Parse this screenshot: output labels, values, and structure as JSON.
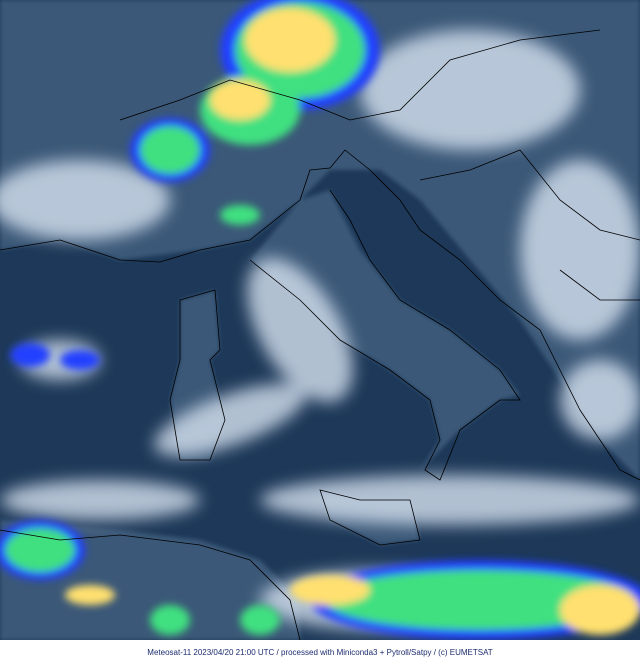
{
  "caption": "Meteosat-11 2023/04/20 21:00 UTC / processed with Miniconda3 + Pytroll/Satpy / (c) EUMETSAT",
  "colors": {
    "sea": "#1d3858",
    "land": "#3a5878",
    "cloud": "#d6e2f0",
    "convection_blue": "#2040ff",
    "convection_green": "#40e080",
    "convection_yellow": "#ffe070",
    "coastline": "#000000"
  }
}
